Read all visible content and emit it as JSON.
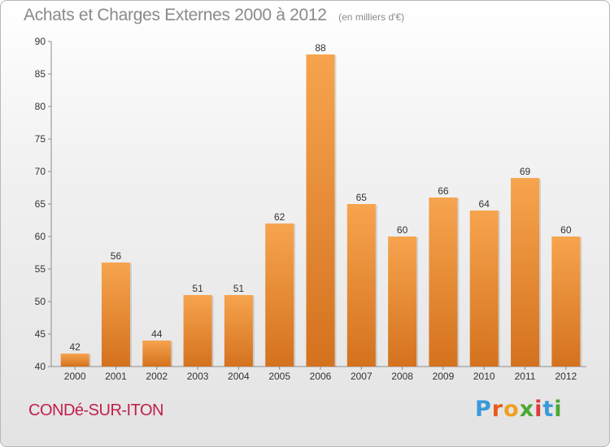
{
  "title": "Achats et Charges Externes 2000 à 2012",
  "subtitle": "(en milliers d'€)",
  "town": "CONDé-SUR-ITON",
  "brand": {
    "text": "Proxiti",
    "letter_colors": [
      "#3a9ad9",
      "#e85a1c",
      "#f0a020",
      "#4aa832",
      "#e03a3a",
      "#3a9ad9",
      "#4aa832"
    ]
  },
  "colors": {
    "bar_top": "#f7a44e",
    "bar_bottom": "#d4721e",
    "axis": "#8c8c8c",
    "grid": "#c8c8c8",
    "text": "#333333"
  },
  "chart_data": {
    "type": "bar",
    "categories": [
      "2000",
      "2001",
      "2002",
      "2003",
      "2004",
      "2005",
      "2006",
      "2007",
      "2008",
      "2009",
      "2010",
      "2011",
      "2012"
    ],
    "values": [
      42,
      56,
      44,
      51,
      51,
      62,
      88,
      65,
      60,
      66,
      64,
      69,
      60
    ],
    "ylim": [
      40,
      90
    ],
    "yticks": [
      40,
      45,
      50,
      55,
      60,
      65,
      70,
      75,
      80,
      85,
      90
    ],
    "grid": false,
    "legend": "none"
  }
}
